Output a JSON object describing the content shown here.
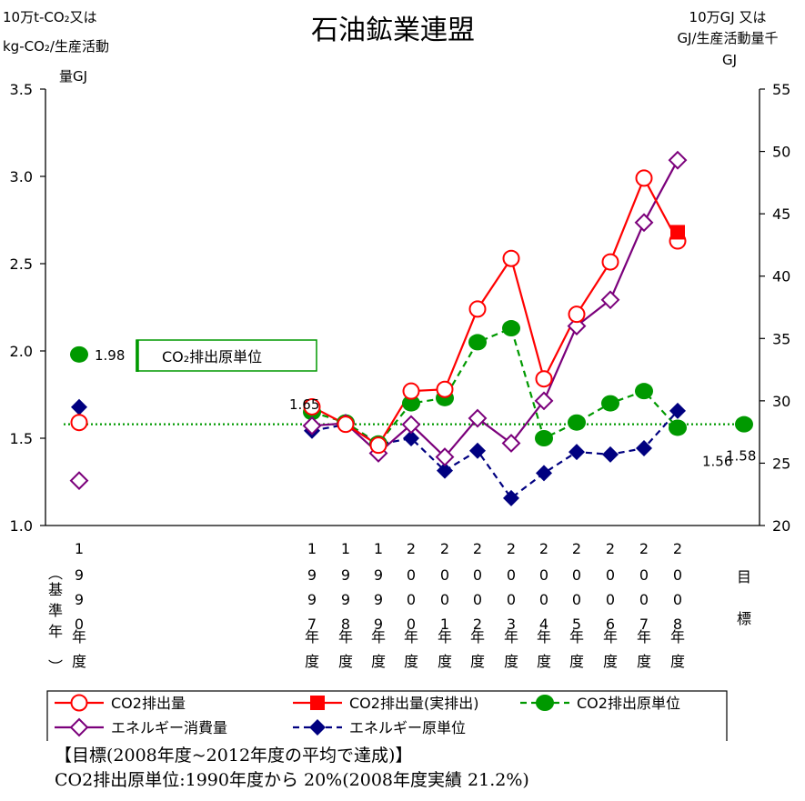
{
  "chart_data": {
    "type": "line",
    "title": "石油鉱業連盟",
    "left_axis_label": [
      "10万t-CO₂又は",
      "kg-CO₂/生産活動",
      "量GJ"
    ],
    "right_axis_label": [
      "10万GJ 又は",
      "GJ/生産活動量千",
      "GJ"
    ],
    "ylim_left": [
      1.0,
      3.5
    ],
    "ylim_right": [
      20,
      55
    ],
    "left_ticks": [
      "1.0",
      "1.5",
      "2.0",
      "2.5",
      "3.0",
      "3.5"
    ],
    "right_ticks": [
      "20",
      "25",
      "30",
      "35",
      "40",
      "45",
      "50",
      "55"
    ],
    "x_labels": [
      "1990年度(基準年)",
      "1997年度",
      "1998年度",
      "1999年度",
      "2000年度",
      "2001年度",
      "2002年度",
      "2003年度",
      "2004年度",
      "2005年度",
      "2006年度",
      "2007年度",
      "2008年度",
      "目標"
    ],
    "series": [
      {
        "name": "CO2排出量",
        "axis": "left",
        "color": "#ff0000",
        "marker": "open-circle",
        "line": "solid",
        "values": [
          1.59,
          1.68,
          1.58,
          1.46,
          1.77,
          1.78,
          2.24,
          2.53,
          1.84,
          2.21,
          2.51,
          2.99,
          2.63,
          null
        ]
      },
      {
        "name": "CO2排出量(実排出)",
        "axis": "left",
        "color": "#ff0000",
        "marker": "filled-square",
        "line": "solid",
        "values": [
          null,
          null,
          null,
          null,
          null,
          null,
          null,
          null,
          null,
          null,
          null,
          null,
          2.68,
          null
        ]
      },
      {
        "name": "CO2排出原単位",
        "axis": "left",
        "color": "#009900",
        "marker": "filled-circle",
        "line": "dashed",
        "values": [
          1.98,
          1.65,
          1.59,
          1.47,
          1.7,
          1.73,
          2.05,
          2.13,
          1.5,
          1.59,
          1.7,
          1.77,
          1.56,
          1.58
        ]
      },
      {
        "name": "エネルギー消費量",
        "axis": "right",
        "color": "#7b007b",
        "marker": "open-diamond",
        "line": "solid",
        "values": [
          23.6,
          28.0,
          28.2,
          25.8,
          28.1,
          25.5,
          28.6,
          26.6,
          30.0,
          36.0,
          38.1,
          44.3,
          49.3,
          null
        ]
      },
      {
        "name": "エネルギー原単位",
        "axis": "right",
        "color": "#000080",
        "marker": "filled-diamond",
        "line": "dashed",
        "values": [
          29.5,
          27.6,
          28.1,
          26.5,
          27.0,
          24.4,
          26.0,
          22.2,
          24.2,
          25.9,
          25.7,
          26.2,
          29.2,
          null
        ]
      }
    ],
    "reference_line": {
      "value": 1.58,
      "axis": "left",
      "color": "#009900",
      "style": "dotted"
    },
    "data_labels": [
      {
        "text": "1.98",
        "series": "CO2排出原単位",
        "index": 0
      },
      {
        "text": "1.65",
        "series": "CO2排出原単位",
        "index": 1
      },
      {
        "text": "1.56",
        "series": "CO2排出原単位",
        "index": 12
      },
      {
        "text": "1.58",
        "series": "CO2排出原単位",
        "index": 13
      }
    ],
    "annotation": "CO₂排出原単位",
    "grid": false,
    "legend_position": "bottom"
  },
  "target_note": {
    "line1": "【目標(2008年度~2012年度の平均で達成)】",
    "line2": "CO2排出原単位:1990年度から 20%(2008年度実績 21.2%)"
  }
}
